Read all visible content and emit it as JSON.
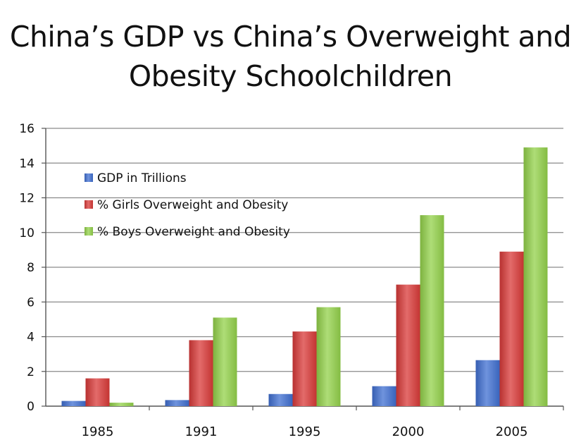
{
  "chart_data": {
    "type": "bar",
    "title_lines": [
      "China’s GDP vs China’s Overweight and",
      "Obesity Schoolchildren"
    ],
    "categories": [
      "1985",
      "1991",
      "1995",
      "2000",
      "2005"
    ],
    "series": [
      {
        "name": "GDP in Trillions",
        "color": "#3f6fd1",
        "values": [
          0.3,
          0.35,
          0.7,
          1.15,
          2.65
        ]
      },
      {
        "name": "% Girls Overweight and Obesity",
        "color": "#d93a38",
        "values": [
          1.6,
          3.8,
          4.3,
          7.0,
          8.9
        ]
      },
      {
        "name": "% Boys Overweight and Obesity",
        "color": "#93d14a",
        "values": [
          0.2,
          5.1,
          5.7,
          11.0,
          14.9
        ]
      }
    ],
    "ylim": [
      0,
      16
    ],
    "yticks": [
      0,
      2,
      4,
      6,
      8,
      10,
      12,
      14,
      16
    ],
    "grid": true,
    "legend_position": "upper-left"
  }
}
